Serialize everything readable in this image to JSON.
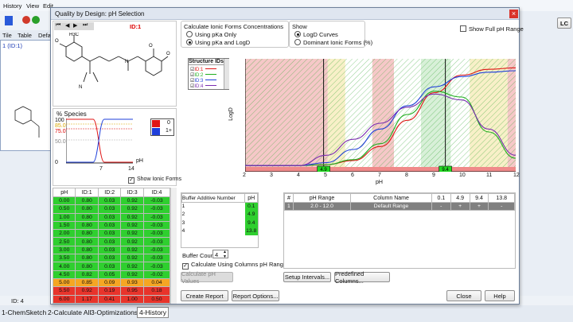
{
  "main": {
    "menu": [
      "History",
      "View",
      "Edit"
    ],
    "tabs": [
      "Tile",
      "Table",
      "Defa"
    ],
    "compound_label": "1 (ID:1)",
    "status_id": "ID: 4",
    "bottom_tabs": [
      "1-ChemSketch",
      "2-Calculate All",
      "3-Optimizations",
      "4-History"
    ],
    "lc_button": "LC"
  },
  "dialog": {
    "title": "Quality by Design: pH Selection",
    "id_label": "ID:1"
  },
  "calc": {
    "title": "Calculate Ionic Forms Concentrations",
    "opt1": "Using pKa Only",
    "opt2": "Using pKa and LogD",
    "selected": 2
  },
  "show": {
    "title": "Show",
    "opt1": "LogD Curves",
    "opt2": "Dominant Ionic Forms (%)",
    "selected": 1,
    "full_ph": "Show Full pH Range"
  },
  "species": {
    "title": "% Species",
    "y_ticks": [
      "100",
      "85.0",
      "75.0",
      "50.0",
      "0"
    ],
    "x_ticks": [
      "7",
      "14"
    ],
    "x_label": "pH",
    "legend": [
      "0",
      "1+"
    ],
    "legend_colors": [
      "#1f3fdb",
      "#e01515"
    ],
    "show_ionic": "Show Ionic Forms"
  },
  "structure_ids": {
    "title": "Structure IDs",
    "items": [
      {
        "label": "ID:1",
        "color": "#e01515"
      },
      {
        "label": "ID:2",
        "color": "#1fae1f"
      },
      {
        "label": "ID:3",
        "color": "#1f3fdb"
      },
      {
        "label": "ID:4",
        "color": "#7a2db0"
      }
    ]
  },
  "chart_data": {
    "type": "line",
    "xlabel": "pH",
    "ylabel": "LogD",
    "xlim": [
      2,
      12
    ],
    "x_ticks": [
      2,
      3,
      4,
      5,
      6,
      7,
      8,
      9,
      10,
      11,
      12
    ],
    "markers": [
      "4.9",
      "9.4"
    ],
    "series": [
      {
        "name": "ID:1",
        "color": "#e01515",
        "x": [
          2,
          3,
          4,
          5,
          6,
          7,
          8,
          9,
          10,
          11,
          12
        ],
        "y": [
          0.05,
          0.05,
          0.05,
          0.08,
          0.22,
          0.7,
          1.6,
          2.55,
          3.15,
          3.35,
          3.4
        ]
      },
      {
        "name": "ID:2",
        "color": "#1fae1f",
        "x": [
          2,
          3,
          4,
          5,
          6,
          7,
          8,
          9,
          10,
          11,
          12
        ],
        "y": [
          0.05,
          0.05,
          0.05,
          0.08,
          0.25,
          0.8,
          1.8,
          2.6,
          2.4,
          1.2,
          0.3
        ]
      },
      {
        "name": "ID:3",
        "color": "#1f3fdb",
        "x": [
          2,
          3,
          4,
          5,
          6,
          7,
          8,
          9,
          10,
          11,
          12
        ],
        "y": [
          0.05,
          0.05,
          0.05,
          0.15,
          0.6,
          1.3,
          2.1,
          2.75,
          3.1,
          3.25,
          3.3
        ]
      },
      {
        "name": "ID:4",
        "color": "#7a2db0",
        "x": [
          2,
          3,
          4,
          5,
          6,
          7,
          8,
          9,
          10,
          11,
          12
        ],
        "y": [
          0.05,
          0.05,
          0.05,
          0.4,
          0.95,
          1.5,
          2.05,
          2.5,
          2.3,
          1.3,
          0.4
        ]
      }
    ]
  },
  "phtable": {
    "headers": [
      "pH",
      "ID:1",
      "ID:2",
      "ID:3",
      "ID:4"
    ],
    "rows": [
      {
        "cells": [
          "0.00",
          "0.80",
          "0.03",
          "0.92",
          "-0.03"
        ],
        "color": "#2fcf2f"
      },
      {
        "cells": [
          "0.50",
          "0.80",
          "0.03",
          "0.92",
          "-0.03"
        ],
        "color": "#2fcf2f"
      },
      {
        "cells": [
          "1.00",
          "0.80",
          "0.03",
          "0.92",
          "-0.03"
        ],
        "color": "#2fcf2f"
      },
      {
        "cells": [
          "1.50",
          "0.80",
          "0.03",
          "0.92",
          "-0.03"
        ],
        "color": "#2fcf2f"
      },
      {
        "cells": [
          "2.00",
          "0.80",
          "0.03",
          "0.92",
          "-0.03"
        ],
        "color": "#2fcf2f"
      },
      {
        "cells": [
          "2.50",
          "0.80",
          "0.03",
          "0.92",
          "-0.03"
        ],
        "color": "#2fcf2f"
      },
      {
        "cells": [
          "3.00",
          "0.80",
          "0.03",
          "0.92",
          "-0.03"
        ],
        "color": "#2fcf2f"
      },
      {
        "cells": [
          "3.50",
          "0.80",
          "0.03",
          "0.92",
          "-0.03"
        ],
        "color": "#2fcf2f"
      },
      {
        "cells": [
          "4.00",
          "0.80",
          "0.03",
          "0.92",
          "-0.03"
        ],
        "color": "#2fcf2f"
      },
      {
        "cells": [
          "4.50",
          "0.82",
          "0.05",
          "0.92",
          "-0.02"
        ],
        "color": "#2fcf2f"
      },
      {
        "cells": [
          "5.00",
          "0.85",
          "0.09",
          "0.93",
          "0.04"
        ],
        "color": "#f5a623"
      },
      {
        "cells": [
          "5.50",
          "0.92",
          "0.19",
          "0.95",
          "0.18"
        ],
        "color": "#e8342b"
      },
      {
        "cells": [
          "6.00",
          "1.17",
          "0.41",
          "1.00",
          "0.50"
        ],
        "color": "#e8342b"
      },
      {
        "cells": [
          "6.50",
          "1.53",
          "0.84",
          "1.08",
          "0.96"
        ],
        "color": "#e8342b"
      }
    ]
  },
  "buffer": {
    "headers": [
      "Buffer Additive Number",
      "pH"
    ],
    "rows": [
      [
        "1",
        "0.1"
      ],
      [
        "2",
        "4.9"
      ],
      [
        "3",
        "9.4"
      ],
      [
        "4",
        "13.8"
      ]
    ],
    "count_label": "Buffer Count",
    "count_value": "4",
    "use_columns": "Calculate Using Columns pH Ranges",
    "calc_btn": "Calculate pH Values"
  },
  "ranges": {
    "headers": [
      "#",
      "pH Range",
      "Column Name",
      "0.1",
      "4.9",
      "9.4",
      "13.8"
    ],
    "row": [
      "1",
      "2.0 - 12.0",
      "Default Range",
      "-",
      "+",
      "+",
      "-"
    ],
    "setup_btn": "Setup Intervals...",
    "predef_btn": "Predefined Columns..."
  },
  "buttons": {
    "create": "Create Report",
    "options": "Report Options...",
    "close": "Close",
    "help": "Help"
  }
}
